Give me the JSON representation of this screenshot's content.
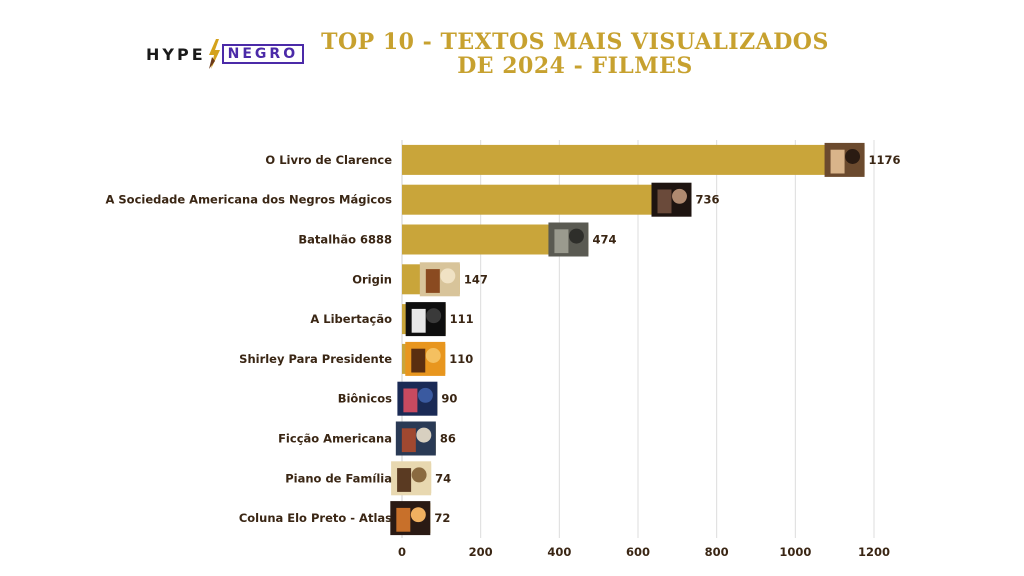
{
  "logo": {
    "part1": "HYPE",
    "part2": "NEGRO"
  },
  "chart_data": {
    "type": "bar",
    "orientation": "horizontal",
    "title": "TOP 10 - TEXTOS MAIS VISUALIZADOS DE 2024 - FILMES",
    "categories": [
      "O Livro de Clarence",
      "A Sociedade Americana dos Negros Mágicos",
      "Batalhão 6888",
      "Origin",
      "A Libertação",
      "Shirley Para Presidente",
      "Biônicos",
      "Ficção Americana",
      "Piano de Família",
      "Coluna Elo Preto - Atlas"
    ],
    "values": [
      1176,
      736,
      474,
      147,
      111,
      110,
      90,
      86,
      74,
      72
    ],
    "xlim": [
      0,
      1200
    ],
    "xticks": [
      0,
      200,
      400,
      600,
      800,
      1000,
      1200
    ],
    "grid": true,
    "bar_color": "#c9a53a",
    "text_color": "#3a2614",
    "thumbnail_palettes": [
      [
        "#6b4a2e",
        "#d9b48a",
        "#2a1b12"
      ],
      [
        "#1e1410",
        "#6a4a3a",
        "#b08a70"
      ],
      [
        "#5a5a52",
        "#9a9a8e",
        "#2e2e2a"
      ],
      [
        "#d8c49a",
        "#8a4a20",
        "#f0e2c4"
      ],
      [
        "#0e0e0e",
        "#e8e8e8",
        "#3a3a3a"
      ],
      [
        "#e8961e",
        "#5a2e10",
        "#f4c060"
      ],
      [
        "#1a2a55",
        "#c84a60",
        "#3a5aa0"
      ],
      [
        "#2a3a55",
        "#a04830",
        "#d8d0c0"
      ],
      [
        "#e8d8b0",
        "#5a3a22",
        "#8a6a40"
      ],
      [
        "#2a1a14",
        "#c8702a",
        "#f0b060"
      ]
    ]
  }
}
